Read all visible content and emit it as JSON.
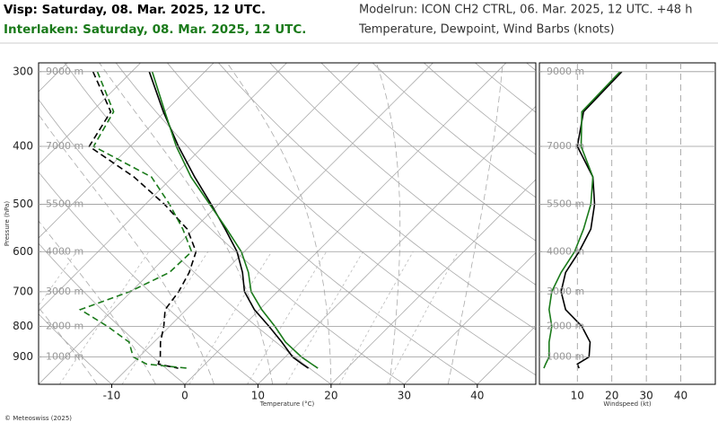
{
  "header": {
    "station1": "Visp: Saturday, 08. Mar. 2025, 12 UTC.",
    "station2": "Interlaken: Saturday, 08. Mar. 2025, 12 UTC.",
    "modelrun": "Modelrun: ICON CH2 CTRL, 06. Mar. 2025, 12 UTC. +48 h",
    "subtitle": "Temperature, Dewpoint, Wind Barbs (knots)"
  },
  "footer": "© Meteoswiss (2025)",
  "chart_data": [
    {
      "type": "skewt",
      "xlabel": "Temperature (°C)",
      "ylabel": "Pressure (hPa)",
      "xlim": [
        -20,
        48
      ],
      "ylim": [
        1000,
        290
      ],
      "log_y": true,
      "xticks": [
        -10,
        0,
        10,
        20,
        30,
        40
      ],
      "yticks": [
        300,
        400,
        500,
        600,
        700,
        800,
        900
      ],
      "grid": true,
      "height_labels": [
        {
          "value": 300,
          "label": "9000 m"
        },
        {
          "value": 400,
          "label": "7000 m"
        },
        {
          "value": 500,
          "label": "5500 m"
        },
        {
          "value": 600,
          "label": "4000 m"
        },
        {
          "value": 700,
          "label": "3000 m"
        },
        {
          "value": 800,
          "label": "2000 m"
        },
        {
          "value": 900,
          "label": "1000 m"
        }
      ],
      "levels": [
        300,
        350,
        400,
        450,
        500,
        550,
        600,
        650,
        700,
        750,
        800,
        850,
        900,
        925,
        940
      ],
      "series": [
        {
          "color": "#000000",
          "dashed": false,
          "values": [
            -47.6,
            -40.2,
            -33.4,
            -27.0,
            -21.0,
            -15.7,
            -11.0,
            -7.4,
            -4.5,
            -0.7,
            3.6,
            7.5,
            11.0,
            13.3,
            14.7
          ]
        },
        {
          "color": "#000000",
          "dashed": true,
          "values": [
            -55.3,
            -47.4,
            -45.6,
            -35.3,
            -27.4,
            -20.9,
            -16.6,
            -14.7,
            -13.5,
            -12.9,
            -10.8,
            -9.1,
            -7.1,
            -6.4,
            -3.1
          ]
        },
        {
          "color": "#1a7a1a",
          "dashed": false,
          "values": [
            -47.2,
            -40.0,
            -33.7,
            -27.5,
            -21.2,
            -15.5,
            -10.4,
            -6.6,
            -3.6,
            0.3,
            4.4,
            8.0,
            12.2,
            14.6,
            16.0
          ]
        },
        {
          "color": "#1a7a1a",
          "dashed": true,
          "values": [
            -54.7,
            -47.0,
            -45.0,
            -32.9,
            -26.7,
            -21.5,
            -17.2,
            -17.4,
            -20.2,
            -24.5,
            -18.5,
            -13.4,
            -10.8,
            -8.0,
            -1.8
          ]
        }
      ]
    },
    {
      "type": "profile",
      "xlabel": "Windspeed (kt)",
      "xlim": [
        -1,
        50
      ],
      "ylim": [
        1000,
        290
      ],
      "log_y": true,
      "xticks": [
        10,
        20,
        30,
        40
      ],
      "yticks": [
        300,
        400,
        500,
        600,
        700,
        800,
        900
      ],
      "grid": true,
      "height_labels": [
        {
          "value": 300,
          "label": "9000 m"
        },
        {
          "value": 400,
          "label": "7000 m"
        },
        {
          "value": 500,
          "label": "5500 m"
        },
        {
          "value": 600,
          "label": "4000 m"
        },
        {
          "value": 700,
          "label": "3000 m"
        },
        {
          "value": 800,
          "label": "2000 m"
        },
        {
          "value": 900,
          "label": "1000 m"
        }
      ],
      "levels": [
        300,
        350,
        400,
        450,
        500,
        550,
        600,
        650,
        700,
        750,
        800,
        850,
        900,
        925,
        940
      ],
      "series": [
        {
          "color": "#000000",
          "values": [
            22.9,
            11.8,
            10.0,
            14.5,
            15.0,
            13.9,
            10.5,
            6.6,
            5.3,
            6.6,
            11.3,
            13.7,
            13.4,
            10.0,
            10.5
          ]
        },
        {
          "color": "#1a7a1a",
          "values": [
            22.4,
            11.3,
            11.1,
            14.5,
            13.9,
            11.8,
            9.2,
            5.3,
            2.6,
            1.8,
            2.6,
            1.8,
            1.8,
            0.8,
            0.3
          ]
        }
      ]
    }
  ]
}
